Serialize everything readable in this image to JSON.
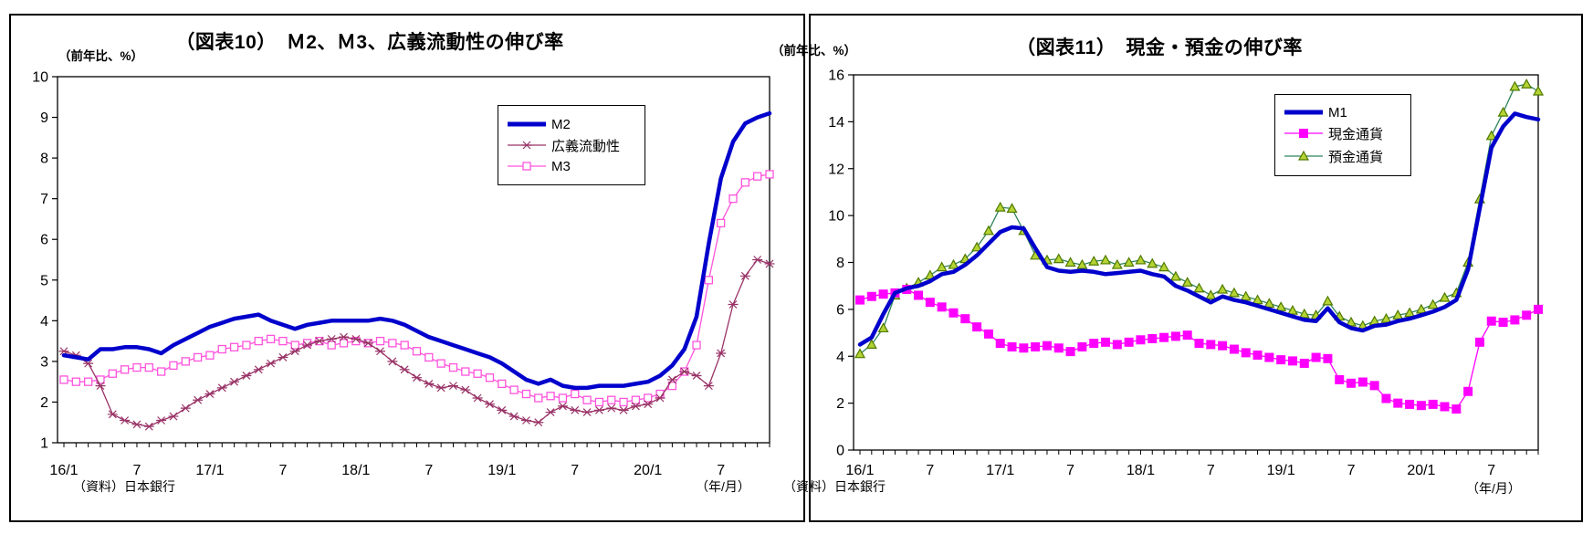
{
  "page": {
    "background": "#ffffff"
  },
  "chart_data": [
    {
      "type": "line",
      "title": "（図表10）　Ｍ2、Ｍ3、広義流動性の伸び率",
      "ylabel": "（前年比、%）",
      "xlabel_note": "（年/月）",
      "source": "（資料）日本銀行",
      "x_frequency": "monthly",
      "x_start": "2016/1",
      "x_end": "2020/11",
      "x_tick_labels": [
        "16/1",
        "7",
        "17/1",
        "7",
        "18/1",
        "7",
        "19/1",
        "7",
        "20/1",
        "7"
      ],
      "x_tick_positions": [
        0,
        6,
        12,
        18,
        24,
        30,
        36,
        42,
        48,
        54
      ],
      "ylim": [
        1,
        10
      ],
      "ytick_step": 1,
      "grid": false,
      "legend_position": "upper-right-inside",
      "series": [
        {
          "name": "М2",
          "color": "#0000CC",
          "width": 4.5,
          "marker": "none",
          "values": [
            3.15,
            3.1,
            3.05,
            3.3,
            3.3,
            3.35,
            3.35,
            3.3,
            3.2,
            3.4,
            3.55,
            3.7,
            3.85,
            3.95,
            4.05,
            4.1,
            4.15,
            4.0,
            3.9,
            3.8,
            3.9,
            3.95,
            4.0,
            4.0,
            4.0,
            4.0,
            4.05,
            4.0,
            3.9,
            3.75,
            3.6,
            3.5,
            3.4,
            3.3,
            3.2,
            3.1,
            2.95,
            2.75,
            2.55,
            2.45,
            2.55,
            2.4,
            2.35,
            2.35,
            2.4,
            2.4,
            2.4,
            2.45,
            2.5,
            2.65,
            2.9,
            3.3,
            4.1,
            5.9,
            7.5,
            8.4,
            8.85,
            9.0,
            9.1
          ]
        },
        {
          "name": "広義流動性",
          "color": "#993366",
          "width": 1.3,
          "marker": "x",
          "values": [
            3.25,
            3.15,
            2.95,
            2.4,
            1.7,
            1.55,
            1.45,
            1.4,
            1.55,
            1.65,
            1.85,
            2.05,
            2.2,
            2.35,
            2.5,
            2.65,
            2.8,
            2.95,
            3.1,
            3.25,
            3.4,
            3.5,
            3.55,
            3.6,
            3.55,
            3.45,
            3.25,
            3.0,
            2.8,
            2.6,
            2.45,
            2.35,
            2.4,
            2.3,
            2.1,
            1.95,
            1.8,
            1.65,
            1.55,
            1.5,
            1.75,
            1.9,
            1.8,
            1.75,
            1.8,
            1.85,
            1.8,
            1.9,
            1.95,
            2.1,
            2.55,
            2.75,
            2.65,
            2.4,
            3.2,
            4.4,
            5.1,
            5.5,
            5.4
          ]
        },
        {
          "name": "М3",
          "color": "#FF54DC",
          "width": 1.3,
          "marker": "square-open",
          "values": [
            2.55,
            2.5,
            2.5,
            2.55,
            2.7,
            2.8,
            2.85,
            2.85,
            2.75,
            2.9,
            3.0,
            3.1,
            3.15,
            3.3,
            3.35,
            3.4,
            3.5,
            3.55,
            3.5,
            3.4,
            3.45,
            3.5,
            3.4,
            3.45,
            3.5,
            3.45,
            3.5,
            3.45,
            3.4,
            3.25,
            3.1,
            2.95,
            2.85,
            2.75,
            2.7,
            2.6,
            2.45,
            2.3,
            2.2,
            2.1,
            2.15,
            2.1,
            2.2,
            2.05,
            2.0,
            2.05,
            2.0,
            2.05,
            2.1,
            2.2,
            2.4,
            2.75,
            3.4,
            5.0,
            6.4,
            7.0,
            7.4,
            7.55,
            7.6
          ]
        }
      ]
    },
    {
      "type": "line",
      "title": "（図表11）　現金・預金の伸び率",
      "ylabel": "（前年比、%）",
      "xlabel_note": "（年/月）",
      "source": "（資料）日本銀行",
      "x_frequency": "monthly",
      "x_start": "2016/1",
      "x_end": "2020/11",
      "x_tick_labels": [
        "16/1",
        "7",
        "17/1",
        "7",
        "18/1",
        "7",
        "19/1",
        "7",
        "20/1",
        "7"
      ],
      "x_tick_positions": [
        0,
        6,
        12,
        18,
        24,
        30,
        36,
        42,
        48,
        54
      ],
      "ylim": [
        0,
        16
      ],
      "ytick_step": 2,
      "grid": false,
      "legend_position": "upper-right-inside",
      "series": [
        {
          "name": "М1",
          "color": "#0000CC",
          "width": 4.5,
          "marker": "none",
          "values": [
            4.5,
            4.8,
            5.8,
            6.7,
            6.9,
            7.0,
            7.2,
            7.5,
            7.6,
            7.9,
            8.3,
            8.8,
            9.3,
            9.5,
            9.45,
            8.6,
            7.8,
            7.65,
            7.6,
            7.65,
            7.6,
            7.5,
            7.55,
            7.6,
            7.65,
            7.5,
            7.4,
            7.0,
            6.8,
            6.55,
            6.3,
            6.55,
            6.4,
            6.3,
            6.15,
            6.0,
            5.85,
            5.7,
            5.55,
            5.5,
            6.05,
            5.45,
            5.2,
            5.1,
            5.3,
            5.35,
            5.5,
            5.6,
            5.75,
            5.9,
            6.1,
            6.4,
            7.7,
            10.3,
            12.9,
            13.8,
            14.35,
            14.2,
            14.1
          ]
        },
        {
          "name": "現金通貨",
          "color": "#FF00FF",
          "width": 1.3,
          "marker": "square-filled",
          "values": [
            6.4,
            6.55,
            6.65,
            6.7,
            6.85,
            6.6,
            6.3,
            6.1,
            5.85,
            5.6,
            5.25,
            4.95,
            4.55,
            4.4,
            4.35,
            4.4,
            4.45,
            4.35,
            4.2,
            4.4,
            4.55,
            4.6,
            4.5,
            4.6,
            4.7,
            4.75,
            4.8,
            4.85,
            4.9,
            4.55,
            4.5,
            4.45,
            4.3,
            4.15,
            4.05,
            3.95,
            3.85,
            3.8,
            3.7,
            3.95,
            3.9,
            3.0,
            2.85,
            2.9,
            2.75,
            2.2,
            2.0,
            1.95,
            1.9,
            1.95,
            1.85,
            1.75,
            2.5,
            4.6,
            5.5,
            5.45,
            5.55,
            5.75,
            6.0
          ]
        },
        {
          "name": "預金通貨",
          "color": "#2F855A",
          "width": 1.3,
          "marker": "triangle-open",
          "marker_fill": "#B5D334",
          "marker_stroke": "#4F7A00",
          "values": [
            4.1,
            4.5,
            5.2,
            6.6,
            6.9,
            7.15,
            7.45,
            7.8,
            7.9,
            8.15,
            8.65,
            9.35,
            10.35,
            10.3,
            9.35,
            8.3,
            8.1,
            8.15,
            8.0,
            7.9,
            8.05,
            8.1,
            7.9,
            8.0,
            8.1,
            7.95,
            7.8,
            7.4,
            7.15,
            6.9,
            6.6,
            6.85,
            6.7,
            6.55,
            6.4,
            6.25,
            6.1,
            5.95,
            5.8,
            5.75,
            6.35,
            5.7,
            5.45,
            5.3,
            5.5,
            5.6,
            5.75,
            5.85,
            6.0,
            6.2,
            6.5,
            6.7,
            8.0,
            10.7,
            13.4,
            14.4,
            15.5,
            15.6,
            15.3
          ]
        }
      ]
    }
  ]
}
